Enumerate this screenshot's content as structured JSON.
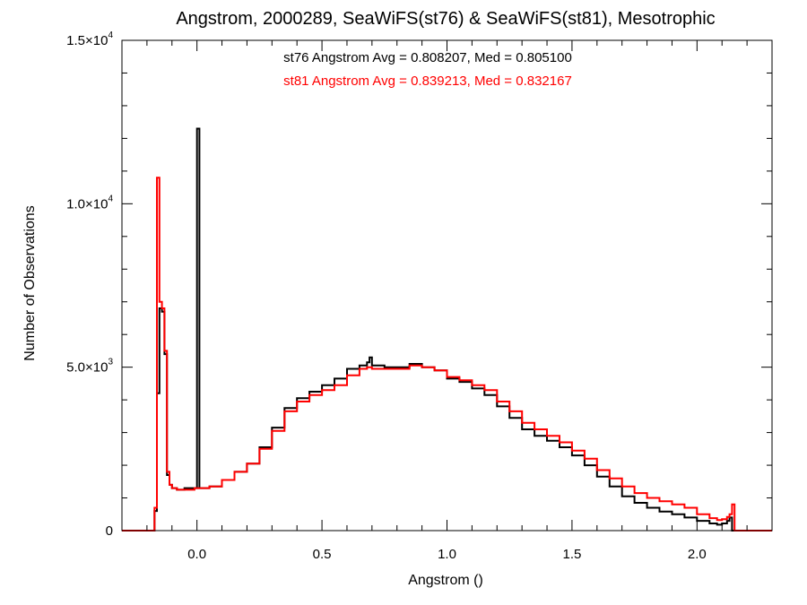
{
  "chart_data": {
    "type": "line",
    "step": true,
    "title": "Angstrom, 2000289, SeaWiFS(st76) & SeaWiFS(st81), Mesotrophic",
    "xlabel": "Angstrom ()",
    "ylabel": "Number of Observations",
    "xlim": [
      -0.3,
      2.3
    ],
    "ylim": [
      0,
      15000
    ],
    "x_ticks": [
      0.0,
      0.5,
      1.0,
      1.5,
      2.0
    ],
    "x_tick_labels": [
      "0.0",
      "0.5",
      "1.0",
      "1.5",
      "2.0"
    ],
    "y_ticks": [
      0,
      5000,
      10000,
      15000
    ],
    "y_tick_labels": [
      {
        "mantissa": "0",
        "exponent": ""
      },
      {
        "mantissa": "5.0×10",
        "exponent": "3"
      },
      {
        "mantissa": "1.0×10",
        "exponent": "4"
      },
      {
        "mantissa": "1.5×10",
        "exponent": "4"
      }
    ],
    "annotations": [
      {
        "text": "st76 Angstrom Avg = 0.808207, Med = 0.805100",
        "color": "#000000"
      },
      {
        "text": "st81 Angstrom Avg = 0.839213, Med = 0.832167",
        "color": "#ff0000"
      }
    ],
    "series": [
      {
        "color": "#000000",
        "x": [
          -0.3,
          -0.18,
          -0.17,
          -0.16,
          -0.15,
          -0.14,
          -0.13,
          -0.12,
          -0.11,
          -0.1,
          -0.08,
          -0.05,
          -0.02,
          -0.01,
          0.0,
          0.01,
          0.03,
          0.05,
          0.1,
          0.15,
          0.2,
          0.25,
          0.3,
          0.35,
          0.4,
          0.45,
          0.5,
          0.55,
          0.6,
          0.65,
          0.68,
          0.69,
          0.7,
          0.75,
          0.8,
          0.85,
          0.9,
          0.95,
          1.0,
          1.05,
          1.1,
          1.15,
          1.2,
          1.25,
          1.3,
          1.35,
          1.4,
          1.45,
          1.5,
          1.55,
          1.6,
          1.65,
          1.7,
          1.75,
          1.8,
          1.85,
          1.9,
          1.95,
          2.0,
          2.05,
          2.08,
          2.1,
          2.12,
          2.13,
          2.14,
          2.15,
          2.3
        ],
        "y": [
          0,
          0,
          600,
          4200,
          6800,
          6700,
          5400,
          1700,
          1400,
          1300,
          1250,
          1300,
          1300,
          1300,
          12300,
          1300,
          1300,
          1350,
          1550,
          1800,
          2050,
          2550,
          3150,
          3750,
          4050,
          4250,
          4450,
          4650,
          4950,
          5050,
          5150,
          5300,
          5050,
          5000,
          5000,
          5100,
          5000,
          4900,
          4650,
          4550,
          4350,
          4150,
          3800,
          3450,
          3100,
          2900,
          2750,
          2550,
          2300,
          2000,
          1650,
          1350,
          1050,
          850,
          700,
          580,
          500,
          400,
          300,
          220,
          180,
          220,
          300,
          400,
          0,
          0,
          0
        ]
      },
      {
        "color": "#ff0000",
        "x": [
          -0.3,
          -0.18,
          -0.17,
          -0.16,
          -0.15,
          -0.14,
          -0.13,
          -0.12,
          -0.11,
          -0.1,
          -0.08,
          -0.05,
          -0.02,
          -0.01,
          0.0,
          0.01,
          0.03,
          0.05,
          0.1,
          0.15,
          0.2,
          0.25,
          0.3,
          0.35,
          0.4,
          0.45,
          0.5,
          0.55,
          0.6,
          0.65,
          0.68,
          0.69,
          0.7,
          0.75,
          0.8,
          0.85,
          0.9,
          0.95,
          1.0,
          1.05,
          1.1,
          1.15,
          1.2,
          1.25,
          1.3,
          1.35,
          1.4,
          1.45,
          1.5,
          1.55,
          1.6,
          1.65,
          1.7,
          1.75,
          1.8,
          1.85,
          1.9,
          1.95,
          2.0,
          2.05,
          2.08,
          2.1,
          2.12,
          2.13,
          2.14,
          2.15,
          2.3
        ],
        "y": [
          0,
          0,
          700,
          10800,
          7000,
          6800,
          5500,
          1800,
          1400,
          1300,
          1250,
          1250,
          1250,
          1300,
          1300,
          1300,
          1300,
          1350,
          1550,
          1800,
          2050,
          2500,
          3050,
          3650,
          3950,
          4150,
          4300,
          4450,
          4750,
          4950,
          5000,
          5000,
          4950,
          4950,
          4950,
          5050,
          5000,
          4900,
          4700,
          4600,
          4450,
          4300,
          3950,
          3650,
          3300,
          3100,
          2900,
          2700,
          2450,
          2200,
          1850,
          1600,
          1350,
          1150,
          1000,
          900,
          800,
          700,
          500,
          380,
          320,
          350,
          420,
          500,
          800,
          0,
          0
        ]
      }
    ]
  }
}
